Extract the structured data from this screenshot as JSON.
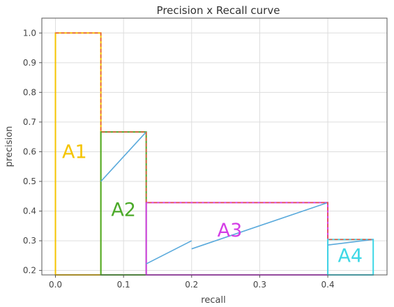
{
  "chart_data": {
    "type": "line",
    "title": "Precision x Recall curve",
    "xlabel": "recall",
    "ylabel": "precision",
    "xlim": [
      -0.02,
      0.487
    ],
    "ylim": [
      0.185,
      1.05
    ],
    "xticks": [
      0.0,
      0.1,
      0.2,
      0.3,
      0.4
    ],
    "xtick_labels": [
      "0.0",
      "0.1",
      "0.2",
      "0.3",
      "0.4"
    ],
    "yticks": [
      0.2,
      0.3,
      0.4,
      0.5,
      0.6,
      0.7,
      0.8,
      0.9,
      1.0
    ],
    "ytick_labels": [
      "0.2",
      "0.3",
      "0.4",
      "0.5",
      "0.6",
      "0.7",
      "0.8",
      "0.9",
      "1.0"
    ],
    "grid": true,
    "pr_curve": {
      "color": "#5aaadc",
      "segments": [
        [
          [
            0.0667,
            0.5
          ],
          [
            0.1333,
            0.6667
          ]
        ],
        [
          [
            0.1333,
            0.2222
          ],
          [
            0.2,
            0.3
          ]
        ],
        [
          [
            0.2,
            0.2727
          ],
          [
            0.4,
            0.4286
          ]
        ],
        [
          [
            0.4,
            0.2857
          ],
          [
            0.4667,
            0.3043
          ]
        ]
      ]
    },
    "interpolated_curve": {
      "color": "#e8553c",
      "style": "dashed",
      "points": [
        [
          0.0,
          1.0
        ],
        [
          0.0667,
          1.0
        ],
        [
          0.0667,
          0.6667
        ],
        [
          0.1333,
          0.6667
        ],
        [
          0.1333,
          0.4286
        ],
        [
          0.4,
          0.4286
        ],
        [
          0.4,
          0.3043
        ],
        [
          0.4667,
          0.3043
        ]
      ]
    },
    "regions": [
      {
        "name": "A1",
        "x0": 0.0,
        "x1": 0.0667,
        "top": 1.0,
        "color": "#f5c400",
        "label_x": 0.028,
        "label_y": 0.6
      },
      {
        "name": "A2",
        "x0": 0.0667,
        "x1": 0.1333,
        "top": 0.6667,
        "color": "#4caa2a",
        "label_x": 0.1,
        "label_y": 0.405
      },
      {
        "name": "A3",
        "x0": 0.1333,
        "x1": 0.4,
        "top": 0.4286,
        "color": "#d43ee6",
        "label_x": 0.256,
        "label_y": 0.335
      },
      {
        "name": "A4",
        "x0": 0.4,
        "x1": 0.4667,
        "top": 0.3043,
        "color": "#3ed8e6",
        "label_x": 0.433,
        "label_y": 0.25
      }
    ]
  }
}
